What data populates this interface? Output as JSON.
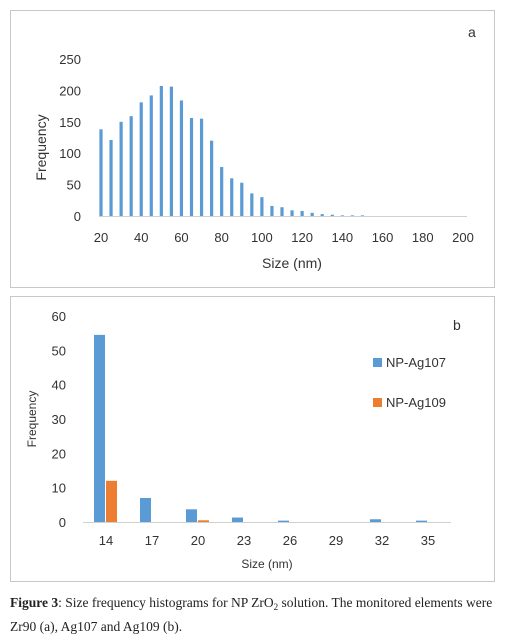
{
  "chart_data": [
    {
      "type": "bar",
      "panel_label": "a",
      "xlabel": "Size (nm)",
      "ylabel": "Frequency",
      "ylim": [
        0,
        250
      ],
      "yticks": [
        0,
        50,
        100,
        150,
        200,
        250
      ],
      "xlim": [
        20,
        200
      ],
      "xticks": [
        20,
        40,
        60,
        80,
        100,
        120,
        140,
        160,
        180,
        200
      ],
      "x": [
        20,
        25,
        30,
        35,
        40,
        45,
        50,
        55,
        60,
        65,
        70,
        75,
        80,
        85,
        90,
        95,
        100,
        105,
        110,
        115,
        120,
        125,
        130,
        135,
        140,
        145,
        150,
        155,
        160,
        165,
        170,
        175,
        180,
        185,
        190,
        195
      ],
      "values": [
        138,
        121,
        150,
        159,
        181,
        192,
        207,
        206,
        184,
        156,
        155,
        120,
        78,
        60,
        53,
        36,
        30,
        16,
        14,
        9,
        8,
        5,
        3,
        2,
        1,
        1,
        1,
        0,
        0,
        0,
        0,
        0,
        0,
        0,
        0,
        0
      ],
      "color": "#5b9bd5",
      "grid": false
    },
    {
      "type": "bar",
      "panel_label": "b",
      "xlabel": "Size (nm)",
      "ylabel": "Frequency",
      "ylim": [
        0,
        60
      ],
      "yticks": [
        0,
        10,
        20,
        30,
        40,
        50,
        60
      ],
      "categories": [
        "14",
        "17",
        "20",
        "23",
        "26",
        "29",
        "32",
        "35"
      ],
      "series": [
        {
          "name": "NP-Ag107",
          "color": "#5b9bd5",
          "values": [
            54.5,
            7,
            3.7,
            1.3,
            0.4,
            0,
            0.8,
            0.4
          ]
        },
        {
          "name": "NP-Ag109",
          "color": "#ed7d31",
          "values": [
            12,
            0,
            0.5,
            0,
            0,
            0,
            0,
            0
          ]
        }
      ],
      "legend_position": "right",
      "grid": false
    }
  ],
  "caption": {
    "label": "Figure 3",
    "text_before_sub": ": Size frequency histograms for NP ZrO",
    "sub": "2",
    "text_after_sub": " solution. The monitored elements were Zr90 (a), Ag107 and Ag109 (b)."
  }
}
